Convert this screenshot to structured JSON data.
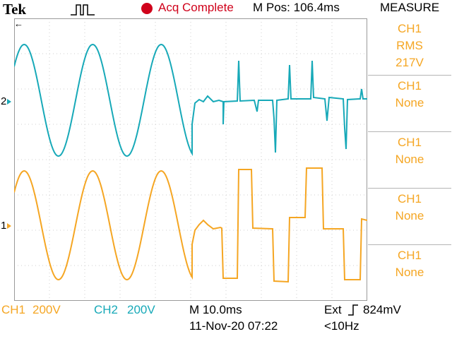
{
  "header": {
    "brand": "Tek",
    "status": "Acq Complete",
    "mpos": "M Pos: 106.4ms",
    "measure_title": "MEASURE",
    "status_color": "#d0021b"
  },
  "channels": {
    "ch1_marker": "1",
    "ch2_marker": "2",
    "ch1_color": "#f5a623",
    "ch2_color": "#17a9b8"
  },
  "measurements": [
    {
      "channel": "CH1",
      "type": "RMS",
      "value": "217V"
    },
    {
      "channel": "CH1",
      "type": "None",
      "value": ""
    },
    {
      "channel": "CH1",
      "type": "None",
      "value": ""
    },
    {
      "channel": "CH1",
      "type": "None",
      "value": ""
    },
    {
      "channel": "CH1",
      "type": "None",
      "value": ""
    }
  ],
  "footer": {
    "ch1_label": "CH1",
    "ch1_scale": "200V",
    "ch2_label": "CH2",
    "ch2_scale": "200V",
    "timebase": "M 10.0ms",
    "datetime": "11-Nov-20 07:22",
    "trigger": "Ext",
    "trigger_level": "824mV",
    "freq": "<10Hz"
  },
  "icons": {
    "trigger_waveform": "pulse-trigger-icon",
    "acq_indicator": "record-dot-icon",
    "trigger_slope": "rising-edge-icon"
  }
}
